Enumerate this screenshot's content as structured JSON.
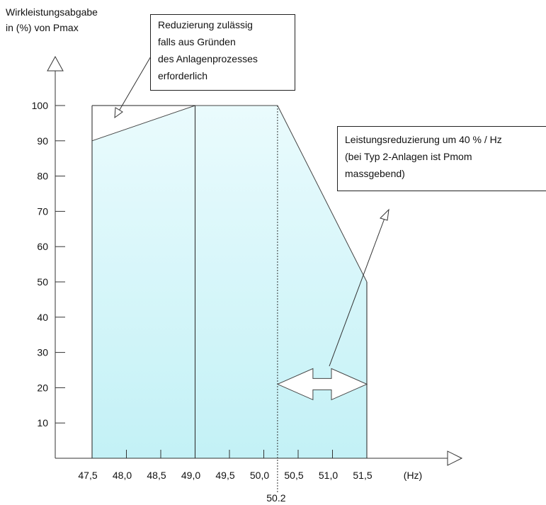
{
  "ylabel": {
    "line1": "Wirkleistungsabgabe",
    "line2": "in (%) von Pmax"
  },
  "annotations": {
    "reduction_allowed": [
      "Reduzierung zulässig",
      "falls aus Gründen",
      "des Anlagenprozesses",
      "erforderlich"
    ],
    "reduction_rate": [
      "Leistungsreduzierung um 40 % / Hz",
      "(bei Typ 2-Anlagen ist Pmom",
      "massgebend)"
    ]
  },
  "colors": {
    "fill_top": "#eafbfd",
    "fill_bottom": "#c3f1f6",
    "line": "#444444",
    "axis": "#333333"
  },
  "chart_data": {
    "type": "area",
    "title": "",
    "xlabel": "(Hz)",
    "ylabel": "Wirkleistungsabgabe in (%) von Pmax",
    "xlim": [
      47.5,
      51.5
    ],
    "ylim": [
      0,
      100
    ],
    "x_ticks": [
      "47,5",
      "48,0",
      "48,5",
      "49,0",
      "49,5",
      "50,0",
      "50,5",
      "51,0",
      "51,5"
    ],
    "y_ticks": [
      10,
      20,
      30,
      40,
      50,
      60,
      70,
      80,
      90,
      100
    ],
    "extra_x_marker": {
      "value": 50.2,
      "label": "50.2"
    },
    "series": [
      {
        "points": [
          [
            47.5,
            90
          ],
          [
            49.0,
            100
          ],
          [
            50.2,
            100
          ],
          [
            51.5,
            50
          ]
        ]
      }
    ],
    "upper_limit_segment": [
      [
        47.5,
        100
      ],
      [
        49.0,
        100
      ]
    ],
    "vertical_lines": [
      47.5,
      49.0,
      50.2,
      51.5
    ],
    "double_arrow_range": [
      50.2,
      51.5
    ],
    "double_arrow_y": 21
  }
}
